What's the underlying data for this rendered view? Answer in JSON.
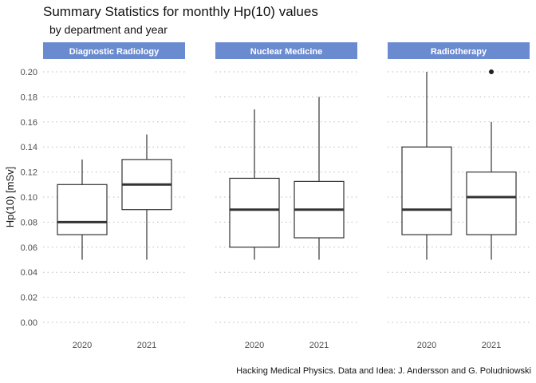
{
  "title": "Summary Statistics for monthly Hp(10) values",
  "subtitle": "by department and year",
  "caption": "Hacking Medical Physics. Data and Idea: J. Andersson and G. Poludniowski",
  "colors": {
    "strip": "#6b8bd0",
    "box_line": "#333333",
    "grid": "#bdbdbd",
    "outlier": "#222222"
  },
  "chart_data": {
    "type": "boxplot",
    "ylabel": "Hp(10) [mSv]",
    "xlabel": "",
    "ylim": [
      0.0,
      0.2
    ],
    "y_ticks": [
      "0.00",
      "0.02",
      "0.04",
      "0.06",
      "0.08",
      "0.10",
      "0.12",
      "0.14",
      "0.16",
      "0.18",
      "0.20"
    ],
    "grid": "horizontal dotted",
    "facets": [
      {
        "name": "Diagnostic Radiology",
        "boxes": [
          {
            "x": "2020",
            "min": 0.05,
            "q1": 0.07,
            "median": 0.08,
            "q3": 0.11,
            "max": 0.13,
            "outliers": []
          },
          {
            "x": "2021",
            "min": 0.05,
            "q1": 0.09,
            "median": 0.11,
            "q3": 0.13,
            "max": 0.15,
            "outliers": []
          }
        ]
      },
      {
        "name": "Nuclear Medicine",
        "boxes": [
          {
            "x": "2020",
            "min": 0.05,
            "q1": 0.06,
            "median": 0.09,
            "q3": 0.115,
            "max": 0.17,
            "outliers": []
          },
          {
            "x": "2021",
            "min": 0.05,
            "q1": 0.0675,
            "median": 0.09,
            "q3": 0.1125,
            "max": 0.18,
            "outliers": []
          }
        ]
      },
      {
        "name": "Radiotherapy",
        "boxes": [
          {
            "x": "2020",
            "min": 0.05,
            "q1": 0.07,
            "median": 0.09,
            "q3": 0.14,
            "max": 0.2,
            "outliers": []
          },
          {
            "x": "2021",
            "min": 0.05,
            "q1": 0.07,
            "median": 0.1,
            "q3": 0.12,
            "max": 0.16,
            "outliers": [
              0.2
            ]
          }
        ]
      }
    ]
  }
}
